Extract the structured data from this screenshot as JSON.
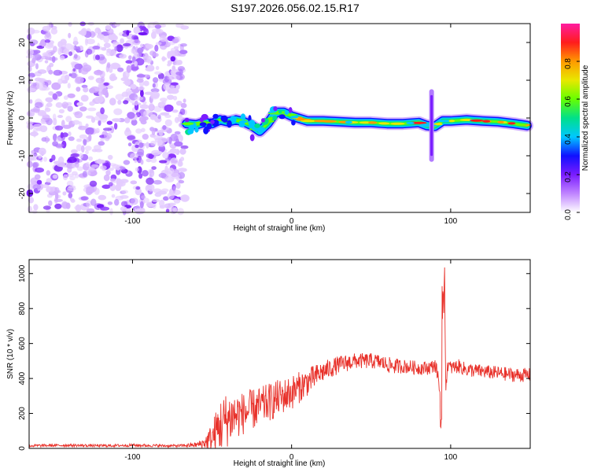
{
  "title": "S197.2026.056.02.15.R17",
  "colors": {
    "frame": "#000000",
    "snr_line": "#e8312a",
    "scatter": "#7a1cff",
    "background": "#ffffff"
  },
  "chart_data": [
    {
      "type": "heatmap",
      "name": "spectrogram",
      "xlabel": "Height of straight line (km)",
      "ylabel": "Frequency (Hz)",
      "xlim": [
        -165,
        150
      ],
      "ylim": [
        -25,
        25
      ],
      "xticks": [
        -100,
        0,
        100
      ],
      "yticks": [
        -20,
        -10,
        0,
        10,
        20
      ],
      "grid": false,
      "noise_region_x": [
        -165,
        -67
      ],
      "signal_track": {
        "x": [
          -66,
          -60,
          -55,
          -50,
          -45,
          -40,
          -35,
          -30,
          -25,
          -20,
          -15,
          -10,
          -5,
          0,
          10,
          20,
          30,
          40,
          50,
          60,
          70,
          80,
          85,
          90,
          95,
          100,
          110,
          120,
          130,
          140,
          148
        ],
        "y": [
          -1.5,
          -1.8,
          -1.2,
          -1.5,
          -0.5,
          -1.0,
          -0.5,
          -1.0,
          -2.0,
          -3.5,
          -1.5,
          1.5,
          1.5,
          0.5,
          -0.8,
          -0.8,
          -1.0,
          -1.2,
          -1.2,
          -1.5,
          -1.5,
          -1.2,
          -2.0,
          -2.2,
          -0.8,
          -0.8,
          -0.5,
          -0.8,
          -1.0,
          -1.5,
          -2.0
        ]
      },
      "disturbances": [
        {
          "x": 88,
          "freq_range": [
            -11,
            7
          ]
        }
      ],
      "colorbar": {
        "label": "Normalized spectral amplitude",
        "range": [
          0,
          1
        ],
        "ticks": [
          "0.0",
          "0.2",
          "0.4",
          "0.6",
          "0.8"
        ],
        "tick_values": [
          0,
          0.2,
          0.4,
          0.6,
          0.8
        ],
        "stops": [
          "#ffffff",
          "#c084ff",
          "#7a1cff",
          "#1010ff",
          "#00c8ff",
          "#00e08a",
          "#66ff00",
          "#e8e800",
          "#ff9a00",
          "#ff1c1c",
          "#ff1ca0"
        ]
      }
    },
    {
      "type": "line",
      "name": "snr",
      "xlabel": "Height of straight line (km)",
      "ylabel": "SNR (10 * v/v)",
      "xlim": [
        -165,
        150
      ],
      "ylim": [
        0,
        1080
      ],
      "xticks": [
        -100,
        0,
        100
      ],
      "yticks": [
        0,
        200,
        400,
        600,
        800,
        1000
      ],
      "grid": false,
      "series": [
        {
          "name": "SNR",
          "x": [
            -165,
            -140,
            -120,
            -100,
            -80,
            -70,
            -60,
            -55,
            -50,
            -45,
            -40,
            -35,
            -30,
            -25,
            -20,
            -15,
            -10,
            -5,
            0,
            5,
            10,
            15,
            20,
            25,
            30,
            35,
            40,
            45,
            50,
            55,
            60,
            65,
            70,
            75,
            80,
            85,
            88,
            90,
            92,
            94,
            95,
            96,
            97,
            98,
            100,
            105,
            110,
            120,
            130,
            140,
            150
          ],
          "values": [
            15,
            18,
            15,
            18,
            15,
            15,
            20,
            30,
            60,
            130,
            170,
            190,
            200,
            220,
            240,
            260,
            280,
            300,
            320,
            350,
            380,
            410,
            440,
            460,
            480,
            490,
            500,
            500,
            500,
            495,
            480,
            470,
            470,
            465,
            460,
            460,
            465,
            480,
            420,
            250,
            90,
            900,
            350,
            480,
            460,
            470,
            450,
            440,
            430,
            420,
            420
          ],
          "noise_amplitude": [
            8,
            8,
            8,
            8,
            8,
            8,
            15,
            30,
            90,
            160,
            160,
            140,
            120,
            120,
            110,
            110,
            110,
            100,
            100,
            90,
            80,
            70,
            60,
            55,
            50,
            50,
            45,
            45,
            45,
            45,
            45,
            45,
            40,
            40,
            40,
            40,
            40,
            40,
            40,
            40,
            40,
            100,
            40,
            40,
            40,
            40,
            40,
            40,
            40,
            40,
            40
          ]
        }
      ]
    }
  ]
}
